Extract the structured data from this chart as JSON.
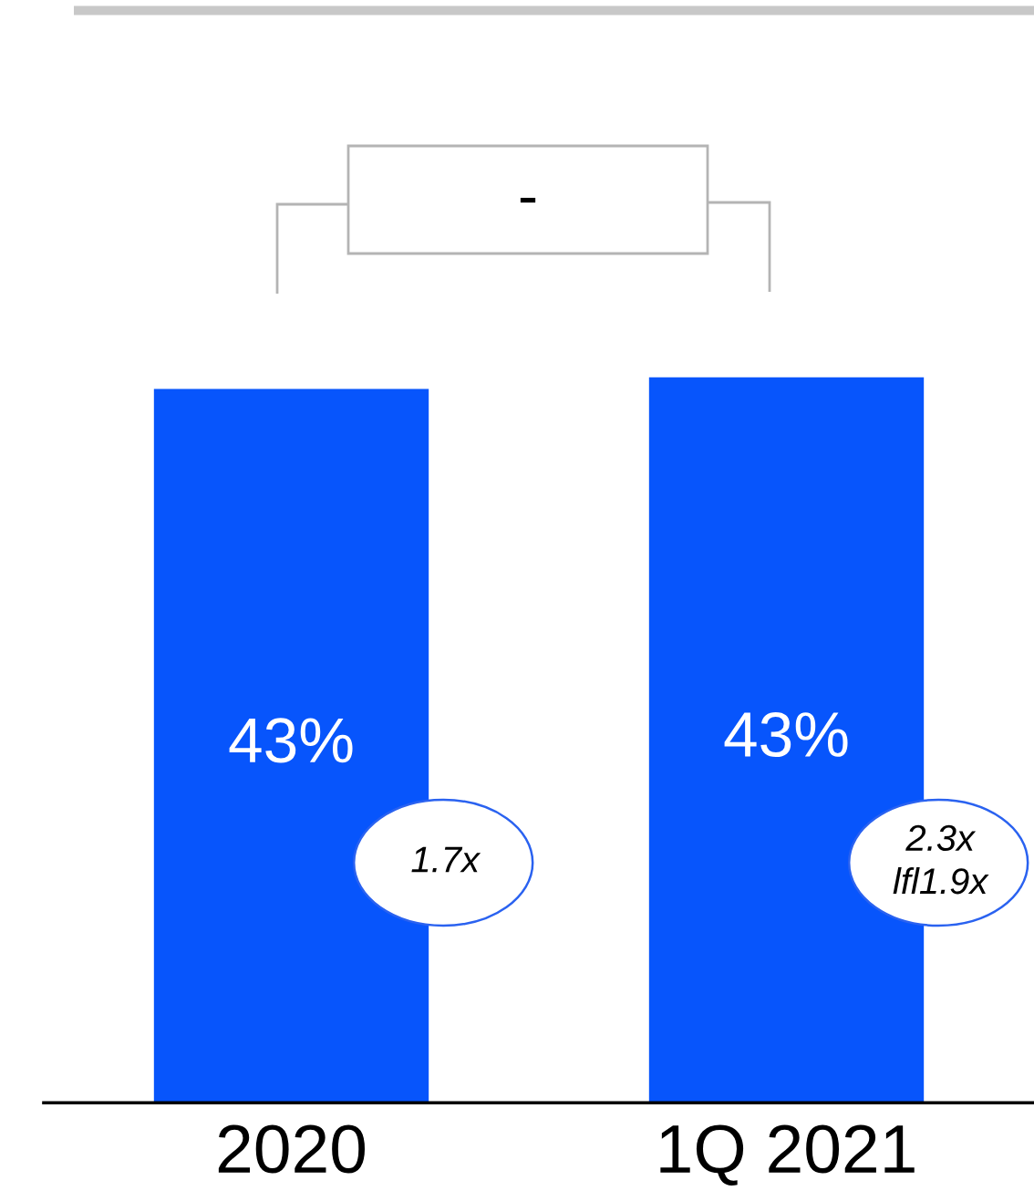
{
  "chart_data": {
    "type": "bar",
    "categories": [
      "2020",
      "1Q 2021"
    ],
    "values": [
      42.7,
      43.4
    ],
    "value_labels": [
      "43%",
      "43%"
    ],
    "color": "#0755fc",
    "annotations": [
      "-",
      "1.7x",
      "2.3x\nlfl1.9x"
    ]
  }
}
